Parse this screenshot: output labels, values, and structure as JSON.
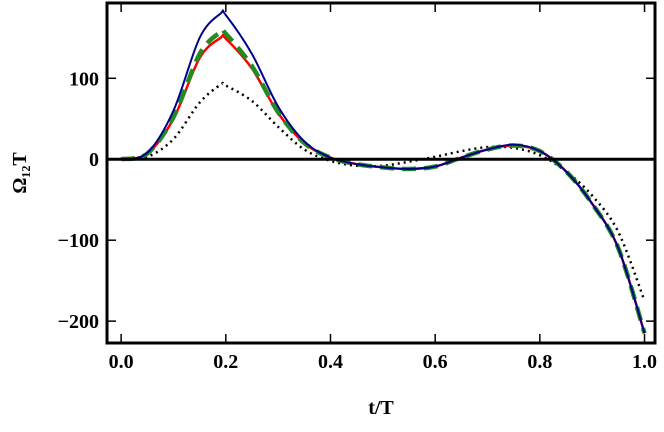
{
  "chart_data": {
    "type": "line",
    "xlabel": "t/T",
    "ylabel": "Ω₁₂T",
    "x": [
      0,
      0.05,
      0.1,
      0.15,
      0.19,
      0.2,
      0.25,
      0.3,
      0.35,
      0.4,
      0.45,
      0.5,
      0.55,
      0.6,
      0.65,
      0.7,
      0.75,
      0.8,
      0.85,
      0.9,
      0.95,
      1.0
    ],
    "series": [
      {
        "color": "#000000",
        "dash": "dotted",
        "values": [
          0,
          3,
          25,
          70,
          92,
          91,
          72,
          40,
          12,
          -2,
          -8,
          -8,
          -3,
          3,
          10,
          15,
          14,
          5,
          -15,
          -45,
          -90,
          -175
        ]
      },
      {
        "color": "#ff0000",
        "dash": "solid",
        "values": [
          0,
          7,
          50,
          125,
          150,
          149,
          112,
          57,
          20,
          2,
          -6,
          -10,
          -12,
          -9,
          2,
          12,
          17,
          10,
          -15,
          -55,
          -110,
          -215
        ]
      },
      {
        "color": "#228b22",
        "dash": "dashed",
        "values": [
          0,
          7,
          52,
          130,
          157,
          155,
          115,
          58,
          20,
          2,
          -6,
          -10,
          -12,
          -9,
          2,
          12,
          17,
          10,
          -15,
          -55,
          -110,
          -215
        ]
      },
      {
        "color": "#00008b",
        "dash": "solid",
        "values": [
          0,
          8,
          60,
          150,
          180,
          178,
          130,
          65,
          22,
          2,
          -6,
          -10,
          -12,
          -9,
          2,
          12,
          18,
          10,
          -15,
          -55,
          -110,
          -215
        ]
      }
    ],
    "xlim": [
      -0.027,
      1.02
    ],
    "ylim": [
      -227,
      193
    ],
    "xticks": [
      {
        "value": 0,
        "label": "0.0"
      },
      0.2,
      0.4,
      0.6,
      0.8,
      {
        "value": 1,
        "label": "1.0"
      }
    ],
    "yticks": [
      {
        "value": -200,
        "label": "−200"
      },
      {
        "value": -100,
        "label": "−100"
      },
      0,
      100
    ]
  }
}
